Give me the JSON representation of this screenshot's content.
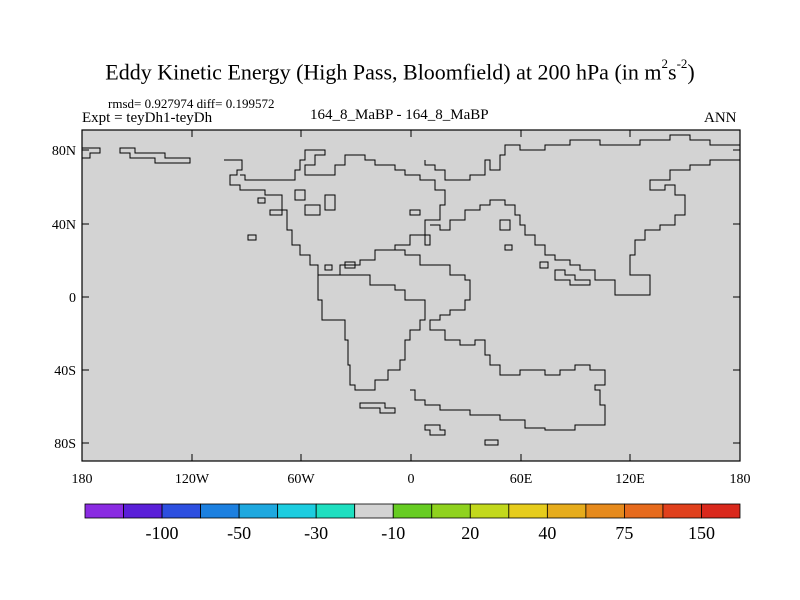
{
  "map": {
    "title_main": "Eddy Kinetic Energy (High Pass, Bloomfield) at 200 hPa (in m",
    "title_exp1": "2",
    "title_mid": "s",
    "title_exp2": "-2",
    "title_end": ")",
    "stats": "rmsd= 0.927974 diff= 0.199572",
    "expt": "Expt = teyDh1-teyDh",
    "cases": "164_8_MaBP - 164_8_MaBP",
    "season": "ANN",
    "fill_color": "#d3d3d3",
    "lat_ticks": [
      "80N",
      "40N",
      "0",
      "40S",
      "80S"
    ],
    "lon_ticks": [
      "180",
      "120W",
      "60W",
      "0",
      "60E",
      "120E",
      "180"
    ]
  },
  "colorbar": {
    "colors": [
      "#8a2be2",
      "#5a1fd8",
      "#2d4fe0",
      "#1c80e0",
      "#1ea8df",
      "#1ccde0",
      "#1edfc0",
      "#d3d3d3",
      "#66cc22",
      "#8fd21e",
      "#c2d81c",
      "#e6cc1c",
      "#e6ac1c",
      "#e68a1c",
      "#e66a1c",
      "#e0401c",
      "#d9281c"
    ],
    "labels": [
      "-100",
      "-50",
      "-30",
      "-10",
      "20",
      "40",
      "75",
      "150"
    ]
  }
}
